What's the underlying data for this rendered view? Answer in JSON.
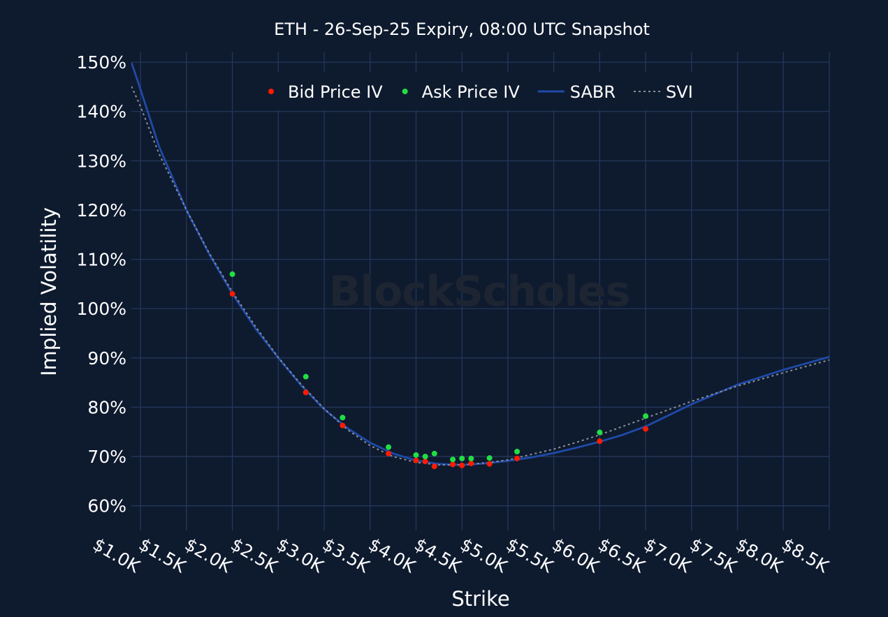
{
  "chart_data": {
    "type": "scatter",
    "title": "ETH - 26-Sep-25 Expiry, 08:00 UTC Snapshot",
    "xlabel": "Strike",
    "ylabel": "Implied Volatility",
    "watermark": "BlockScholes",
    "xlim": [
      900,
      8500
    ],
    "ylim": [
      55,
      152
    ],
    "x_ticks": [
      1000,
      1500,
      2000,
      2500,
      3000,
      3500,
      4000,
      4500,
      5000,
      5500,
      6000,
      6500,
      7000,
      7500,
      8000,
      8500
    ],
    "x_tick_labels": [
      "$1.0K",
      "$1.5K",
      "$2.0K",
      "$2.5K",
      "$3.0K",
      "$3.5K",
      "$4.0K",
      "$4.5K",
      "$5.0K",
      "$5.5K",
      "$6.0K",
      "$6.5K",
      "$7.0K",
      "$7.5K",
      "$8.0K",
      "$8.5K"
    ],
    "y_ticks": [
      60,
      70,
      80,
      90,
      100,
      110,
      120,
      130,
      140,
      150
    ],
    "y_tick_labels": [
      "60%",
      "70%",
      "80%",
      "90%",
      "100%",
      "110%",
      "120%",
      "130%",
      "140%",
      "150%"
    ],
    "grid": true,
    "legend_position": "top",
    "series": [
      {
        "name": "Bid Price IV",
        "kind": "scatter",
        "color": "#ff1a00",
        "points": [
          [
            2000,
            103
          ],
          [
            2800,
            83
          ],
          [
            3200,
            76.3
          ],
          [
            3700,
            70.6
          ],
          [
            4000,
            69.2
          ],
          [
            4100,
            69.0
          ],
          [
            4200,
            68.0
          ],
          [
            4400,
            68.4
          ],
          [
            4500,
            68.2
          ],
          [
            4600,
            68.6
          ],
          [
            4800,
            68.5
          ],
          [
            5100,
            69.6
          ],
          [
            6000,
            73.1
          ],
          [
            6500,
            75.6
          ]
        ]
      },
      {
        "name": "Ask Price IV",
        "kind": "scatter",
        "color": "#22dd44",
        "points": [
          [
            2000,
            107
          ],
          [
            2800,
            86.2
          ],
          [
            3200,
            77.9
          ],
          [
            3700,
            71.9
          ],
          [
            4000,
            70.3
          ],
          [
            4100,
            70.0
          ],
          [
            4200,
            70.6
          ],
          [
            4400,
            69.4
          ],
          [
            4500,
            69.6
          ],
          [
            4600,
            69.6
          ],
          [
            4800,
            69.7
          ],
          [
            5100,
            71.0
          ],
          [
            6000,
            74.9
          ],
          [
            6500,
            78.2
          ]
        ]
      },
      {
        "name": "SABR",
        "kind": "line",
        "color": "#1f4aa8",
        "points": [
          [
            900,
            150
          ],
          [
            1000,
            144.5
          ],
          [
            1200,
            133
          ],
          [
            1500,
            120
          ],
          [
            1750,
            111
          ],
          [
            2000,
            103
          ],
          [
            2250,
            96
          ],
          [
            2500,
            90
          ],
          [
            2750,
            84.4
          ],
          [
            3000,
            79.6
          ],
          [
            3250,
            75.8
          ],
          [
            3500,
            72.8
          ],
          [
            3750,
            70.6
          ],
          [
            4000,
            69.2
          ],
          [
            4250,
            68.5
          ],
          [
            4500,
            68.3
          ],
          [
            4750,
            68.6
          ],
          [
            5000,
            69.1
          ],
          [
            5250,
            69.8
          ],
          [
            5500,
            70.7
          ],
          [
            5750,
            71.8
          ],
          [
            6000,
            73.0
          ],
          [
            6250,
            74.4
          ],
          [
            6500,
            76.1
          ],
          [
            7000,
            80.6
          ],
          [
            7500,
            84.6
          ],
          [
            8000,
            87.6
          ],
          [
            8500,
            90.2
          ]
        ]
      },
      {
        "name": "SVI",
        "kind": "dotted-line",
        "color": "#8a8f99",
        "points": [
          [
            880,
            146
          ],
          [
            1000,
            141
          ],
          [
            1200,
            131.5
          ],
          [
            1500,
            120
          ],
          [
            1750,
            111.2
          ],
          [
            2000,
            103.4
          ],
          [
            2250,
            96.4
          ],
          [
            2500,
            90.1
          ],
          [
            2750,
            84.6
          ],
          [
            3000,
            79.7
          ],
          [
            3250,
            75.5
          ],
          [
            3500,
            72.2
          ],
          [
            3750,
            70.0
          ],
          [
            4000,
            68.8
          ],
          [
            4250,
            68.3
          ],
          [
            4500,
            68.3
          ],
          [
            4750,
            68.7
          ],
          [
            5000,
            69.3
          ],
          [
            5250,
            70.4
          ],
          [
            5500,
            71.5
          ],
          [
            5750,
            72.9
          ],
          [
            6000,
            74.4
          ],
          [
            6250,
            76.1
          ],
          [
            6500,
            77.8
          ],
          [
            7000,
            81.2
          ],
          [
            7500,
            84.3
          ],
          [
            8000,
            87.0
          ],
          [
            8500,
            89.6
          ]
        ]
      }
    ]
  }
}
